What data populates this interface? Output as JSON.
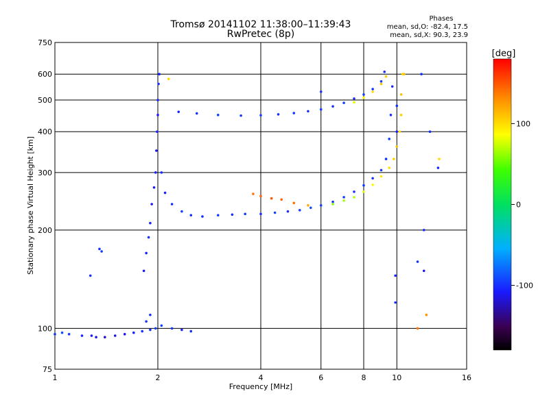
{
  "chart_data": {
    "type": "scatter",
    "title": "Tromsø 20141102 11:38:00–11:39:43",
    "subtitle": "RwPretec (8p)",
    "xlabel": "Frequency [MHz]",
    "ylabel": "Stationary phase Virtual Height [km]",
    "x_scale": "log",
    "y_scale": "log",
    "xlim": [
      1,
      16
    ],
    "ylim": [
      75,
      750
    ],
    "x_ticks": [
      1,
      2,
      4,
      6,
      8,
      10,
      16
    ],
    "y_ticks": [
      75,
      100,
      200,
      300,
      400,
      500,
      600,
      750
    ],
    "grid": true,
    "stats": {
      "heading": "Phases",
      "line1": "mean, sd,O: -82.4, 17.5",
      "line2": "mean, sd,X:  90.3, 23.9"
    },
    "colorbar": {
      "label": "[deg]",
      "ticks": [
        100,
        0,
        -100
      ],
      "range": [
        -180,
        180
      ]
    },
    "series": [
      {
        "description_of_points": "O-mode and X-mode echo traces (sampled)",
        "points": [
          [
            1.0,
            96,
            -100
          ],
          [
            1.05,
            97,
            -90
          ],
          [
            1.1,
            96,
            -95
          ],
          [
            1.2,
            95,
            -105
          ],
          [
            1.28,
            95,
            -110
          ],
          [
            1.32,
            94,
            -115
          ],
          [
            1.4,
            94,
            -120
          ],
          [
            1.5,
            95,
            -115
          ],
          [
            1.6,
            96,
            -110
          ],
          [
            1.7,
            97,
            -105
          ],
          [
            1.8,
            98,
            -100
          ],
          [
            1.9,
            99,
            -100
          ],
          [
            1.97,
            100,
            -95
          ],
          [
            1.85,
            105,
            -100
          ],
          [
            1.9,
            110,
            -100
          ],
          [
            2.05,
            102,
            -95
          ],
          [
            2.2,
            100,
            -100
          ],
          [
            2.35,
            99,
            -105
          ],
          [
            2.5,
            98,
            -100
          ],
          [
            1.35,
            175,
            -100
          ],
          [
            1.37,
            172,
            -95
          ],
          [
            1.27,
            145,
            -100
          ],
          [
            1.82,
            150,
            -110
          ],
          [
            1.85,
            170,
            -105
          ],
          [
            1.88,
            190,
            -100
          ],
          [
            1.9,
            210,
            -105
          ],
          [
            1.92,
            240,
            -110
          ],
          [
            1.95,
            270,
            -110
          ],
          [
            1.97,
            300,
            -105
          ],
          [
            1.98,
            350,
            -110
          ],
          [
            1.99,
            400,
            -105
          ],
          [
            2.0,
            450,
            -110
          ],
          [
            2.0,
            500,
            -105
          ],
          [
            2.01,
            560,
            -100
          ],
          [
            2.02,
            600,
            -105
          ],
          [
            2.05,
            300,
            -100
          ],
          [
            2.1,
            260,
            -105
          ],
          [
            2.2,
            240,
            -100
          ],
          [
            2.35,
            228,
            -95
          ],
          [
            2.5,
            222,
            -100
          ],
          [
            2.7,
            220,
            -100
          ],
          [
            3.0,
            222,
            -95
          ],
          [
            3.3,
            223,
            -100
          ],
          [
            3.6,
            224,
            -95
          ],
          [
            4.0,
            224,
            -100
          ],
          [
            4.4,
            226,
            -95
          ],
          [
            4.8,
            228,
            -100
          ],
          [
            5.2,
            230,
            -95
          ],
          [
            5.6,
            234,
            -90
          ],
          [
            6.0,
            238,
            -95
          ],
          [
            6.5,
            244,
            -100
          ],
          [
            7.0,
            252,
            -95
          ],
          [
            7.5,
            262,
            -100
          ],
          [
            8.0,
            274,
            -95
          ],
          [
            8.5,
            288,
            -100
          ],
          [
            9.0,
            305,
            -95
          ],
          [
            9.3,
            330,
            -100
          ],
          [
            9.5,
            380,
            -95
          ],
          [
            9.6,
            450,
            -100
          ],
          [
            9.7,
            550,
            -105
          ],
          [
            3.8,
            258,
            140
          ],
          [
            4.0,
            254,
            145
          ],
          [
            4.3,
            250,
            150
          ],
          [
            4.6,
            248,
            145
          ],
          [
            5.0,
            242,
            140
          ],
          [
            5.5,
            238,
            120
          ],
          [
            6.5,
            240,
            60
          ],
          [
            7.0,
            246,
            65
          ],
          [
            7.5,
            252,
            70
          ],
          [
            8.0,
            262,
            80
          ],
          [
            8.5,
            275,
            90
          ],
          [
            9.0,
            292,
            95
          ],
          [
            9.5,
            310,
            100
          ],
          [
            9.8,
            330,
            105
          ],
          [
            10.0,
            360,
            110
          ],
          [
            10.2,
            400,
            100
          ],
          [
            10.3,
            450,
            105
          ],
          [
            10.3,
            520,
            110
          ],
          [
            10.4,
            600,
            100
          ],
          [
            2.3,
            460,
            -105
          ],
          [
            2.6,
            455,
            -100
          ],
          [
            3.0,
            450,
            -95
          ],
          [
            3.5,
            448,
            -100
          ],
          [
            4.0,
            449,
            -95
          ],
          [
            4.5,
            452,
            -100
          ],
          [
            5.0,
            456,
            -95
          ],
          [
            5.5,
            462,
            -100
          ],
          [
            6.0,
            468,
            -95
          ],
          [
            6.5,
            478,
            -100
          ],
          [
            7.0,
            490,
            -95
          ],
          [
            7.5,
            505,
            -100
          ],
          [
            8.0,
            520,
            -95
          ],
          [
            8.5,
            540,
            -100
          ],
          [
            9.0,
            570,
            -95
          ],
          [
            9.2,
            610,
            -100
          ],
          [
            7.5,
            492,
            80
          ],
          [
            8.0,
            508,
            90
          ],
          [
            8.5,
            530,
            100
          ],
          [
            9.0,
            560,
            110
          ],
          [
            9.3,
            590,
            105
          ],
          [
            10.0,
            480,
            -100
          ],
          [
            10.0,
            400,
            -105
          ],
          [
            9.9,
            145,
            -105
          ],
          [
            9.9,
            120,
            -100
          ],
          [
            12.0,
            150,
            -110
          ],
          [
            12.2,
            110,
            130
          ],
          [
            11.5,
            100,
            140
          ],
          [
            11.5,
            160,
            -100
          ],
          [
            13.2,
            310,
            -105
          ],
          [
            13.3,
            330,
            100
          ],
          [
            12.5,
            400,
            -100
          ],
          [
            11.8,
            600,
            -100
          ],
          [
            10.5,
            600,
            110
          ],
          [
            12.0,
            200,
            -100
          ],
          [
            6.0,
            530,
            -100
          ],
          [
            2.15,
            580,
            100
          ]
        ]
      }
    ]
  }
}
